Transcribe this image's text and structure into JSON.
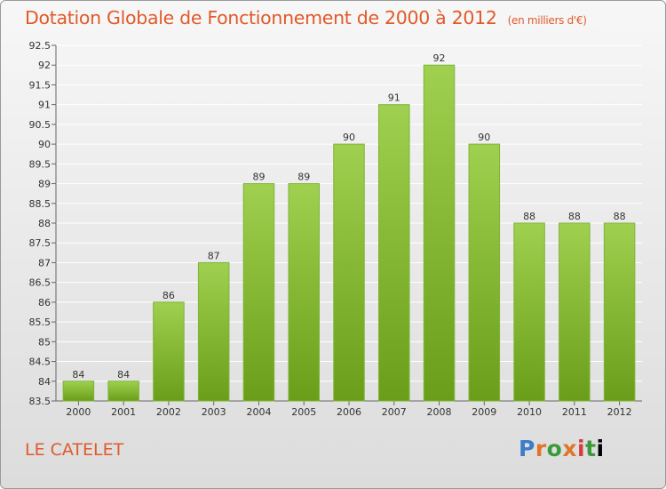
{
  "title": "Dotation Globale de Fonctionnement de 2000 à 2012",
  "subtitle": "(en milliers d'€)",
  "place_name": "LE CATELET",
  "logo_text": "Proxiti",
  "colors": {
    "title": "#e05a2a",
    "bar_top": "#9fd04f",
    "bar_bottom": "#6a9e1a",
    "grid": "#ffffff"
  },
  "chart_data": {
    "type": "bar",
    "categories": [
      "2000",
      "2001",
      "2002",
      "2003",
      "2004",
      "2005",
      "2006",
      "2007",
      "2008",
      "2009",
      "2010",
      "2011",
      "2012"
    ],
    "values": [
      84,
      84,
      86,
      87,
      89,
      89,
      90,
      91,
      92,
      90,
      88,
      88,
      88
    ],
    "ylim": [
      83.5,
      92.5
    ],
    "yticks": [
      83.5,
      84,
      84.5,
      85,
      85.5,
      86,
      86.5,
      87,
      87.5,
      88,
      88.5,
      89,
      89.5,
      90,
      90.5,
      91,
      91.5,
      92,
      92.5
    ],
    "grid": true,
    "xlabel": "",
    "ylabel": ""
  }
}
